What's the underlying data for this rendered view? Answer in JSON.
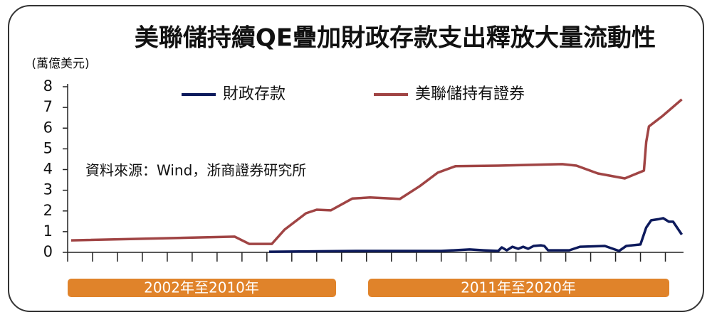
{
  "chart_data": {
    "type": "line",
    "title": "美聯儲持續QE疊加財政存款支出釋放大量流動性",
    "y_unit_label": "(萬億美元)",
    "annotation": "資料來源：Wind，浙商證券研究所",
    "period_labels": [
      "2002年至2010年",
      "2011年至2020年"
    ],
    "xlim": [
      0,
      24.7
    ],
    "xticks": [
      0,
      1,
      2,
      3,
      4,
      5,
      6,
      7,
      8,
      9,
      10,
      11,
      12,
      13,
      14,
      15,
      16,
      17,
      18,
      19,
      20,
      21,
      22,
      23,
      24
    ],
    "ylim": [
      0,
      8
    ],
    "yticks": [
      0,
      1,
      2,
      3,
      4,
      5,
      6,
      7,
      8
    ],
    "series": [
      {
        "name": "財政存款",
        "color": "#0d1a5c",
        "x": [
          8.09,
          11.57,
          15,
          16.14,
          16.71,
          17.29,
          17.43,
          17.63,
          17.86,
          18.09,
          18.29,
          18.49,
          18.71,
          19,
          19.14,
          19.29,
          20.14,
          20.57,
          21.57,
          22.14,
          22.43,
          23,
          23.23,
          23.43,
          23.71,
          23.91,
          24.14,
          24.31,
          24.66
        ],
        "values": [
          0.03,
          0.07,
          0.07,
          0.14,
          0.1,
          0.07,
          0.24,
          0.1,
          0.27,
          0.17,
          0.27,
          0.17,
          0.31,
          0.34,
          0.31,
          0.1,
          0.1,
          0.27,
          0.31,
          0.07,
          0.31,
          0.38,
          1.2,
          1.55,
          1.6,
          1.65,
          1.48,
          1.48,
          0.86
        ]
      },
      {
        "name": "美聯儲持有證券",
        "color": "#a04444",
        "x": [
          0.14,
          6.71,
          7.29,
          8.2,
          8.71,
          9.57,
          10,
          10.57,
          11.43,
          12.14,
          13.34,
          14.14,
          14.86,
          15.57,
          17.29,
          19.86,
          20.43,
          21.29,
          22.37,
          23,
          23.14,
          23.23,
          23.34,
          23.86,
          24.66
        ],
        "values": [
          0.58,
          0.76,
          0.41,
          0.41,
          1.1,
          1.89,
          2.06,
          2.03,
          2.6,
          2.65,
          2.58,
          3.2,
          3.85,
          4.16,
          4.19,
          4.26,
          4.19,
          3.81,
          3.57,
          3.88,
          3.95,
          5.33,
          6.08,
          6.56,
          7.39
        ]
      }
    ]
  }
}
